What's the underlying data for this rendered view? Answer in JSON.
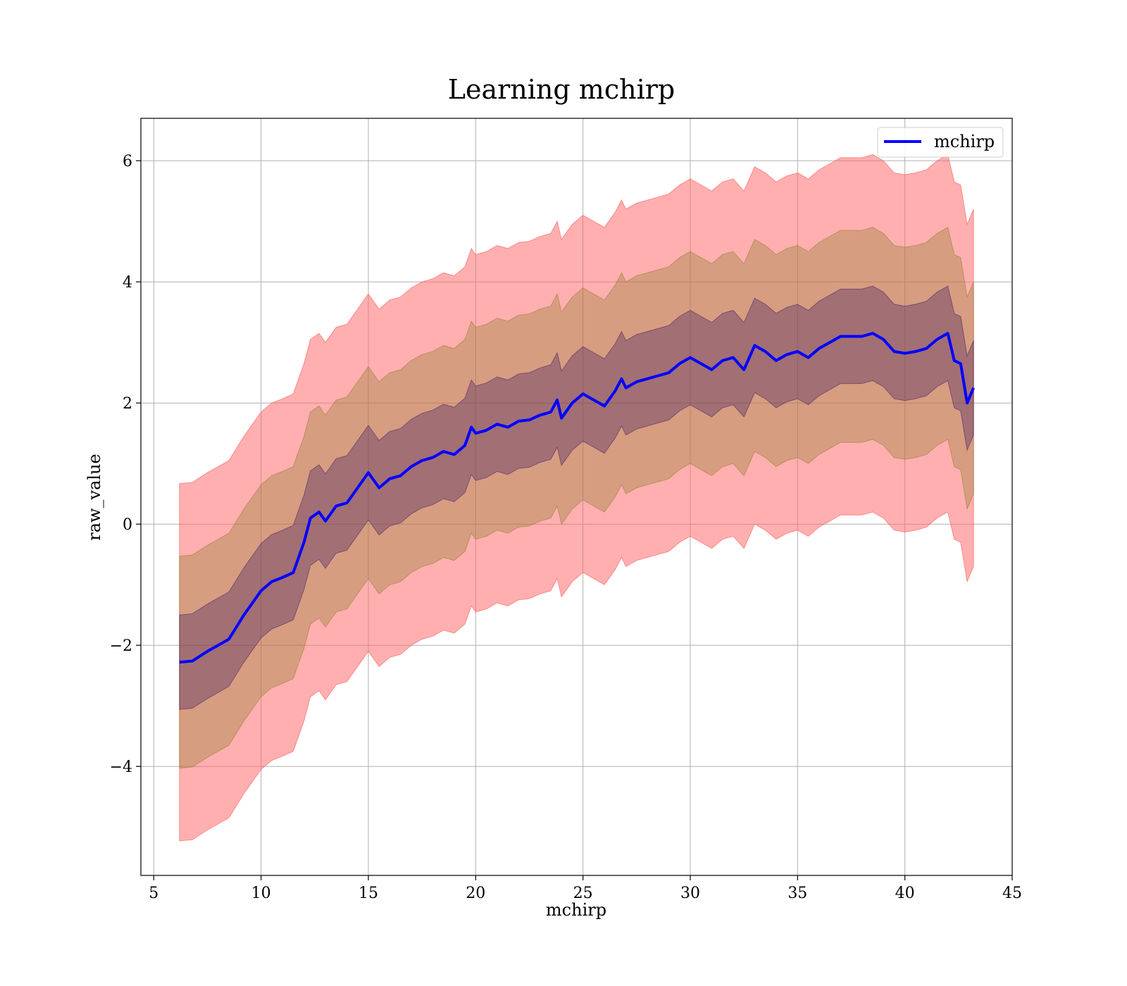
{
  "chart_data": {
    "type": "area",
    "title": "Learning mchirp",
    "xlabel": "mchirp",
    "ylabel": "raw_value",
    "xlim": [
      4.4,
      45
    ],
    "ylim": [
      -5.8,
      6.7
    ],
    "x_ticks": [
      5,
      10,
      15,
      20,
      25,
      30,
      35,
      40,
      45
    ],
    "y_ticks": [
      -4,
      -2,
      0,
      2,
      4,
      6
    ],
    "x_tick_labels": [
      "5",
      "10",
      "15",
      "20",
      "25",
      "30",
      "35",
      "40",
      "45"
    ],
    "y_tick_labels": [
      "−4",
      "−2",
      "0",
      "2",
      "4",
      "6"
    ],
    "grid": true,
    "legend_position": "top-right",
    "x": [
      6.2,
      6.8,
      7.5,
      8.5,
      9.2,
      9.6,
      10.0,
      10.5,
      11.0,
      11.5,
      12.0,
      12.3,
      12.7,
      13.0,
      13.5,
      14.0,
      14.5,
      15.0,
      15.5,
      16.0,
      16.5,
      17.0,
      17.5,
      18.0,
      18.5,
      19.0,
      19.5,
      19.8,
      20.0,
      20.5,
      21.0,
      21.5,
      22.0,
      22.5,
      23.0,
      23.5,
      23.8,
      24.0,
      24.5,
      25.0,
      25.5,
      26.0,
      26.5,
      26.8,
      27.0,
      27.5,
      28.0,
      28.5,
      29.0,
      29.5,
      30.0,
      30.5,
      31.0,
      31.5,
      32.0,
      32.5,
      33.0,
      33.5,
      34.0,
      34.5,
      35.0,
      35.5,
      36.0,
      36.5,
      37.0,
      37.5,
      38.0,
      38.5,
      39.0,
      39.5,
      40.0,
      40.5,
      41.0,
      41.5,
      42.0,
      42.3,
      42.6,
      42.9,
      43.2
    ],
    "series": [
      {
        "name": "mchirp",
        "color": "#0000ff",
        "values": [
          -2.28,
          -2.26,
          -2.1,
          -1.9,
          -1.5,
          -1.3,
          -1.1,
          -0.95,
          -0.88,
          -0.8,
          -0.3,
          0.1,
          0.2,
          0.05,
          0.3,
          0.35,
          0.6,
          0.85,
          0.6,
          0.75,
          0.8,
          0.95,
          1.05,
          1.1,
          1.2,
          1.15,
          1.3,
          1.6,
          1.5,
          1.55,
          1.65,
          1.6,
          1.7,
          1.72,
          1.8,
          1.85,
          2.05,
          1.75,
          2.0,
          2.15,
          2.05,
          1.95,
          2.2,
          2.4,
          2.25,
          2.35,
          2.4,
          2.45,
          2.5,
          2.65,
          2.75,
          2.65,
          2.55,
          2.7,
          2.75,
          2.55,
          2.95,
          2.85,
          2.7,
          2.8,
          2.85,
          2.75,
          2.9,
          3.0,
          3.1,
          3.1,
          3.1,
          3.15,
          3.05,
          2.85,
          2.82,
          2.85,
          2.9,
          3.05,
          3.15,
          2.7,
          2.65,
          2.0,
          2.25
        ]
      }
    ],
    "bands": [
      {
        "sigma": 3,
        "color": "#ff6666",
        "opacity": 0.52,
        "half_width": 2.95
      },
      {
        "sigma": 2,
        "color": "#8b7a2b",
        "opacity": 0.35,
        "half_width": 1.75
      },
      {
        "sigma": 1,
        "color": "#3f1a5f",
        "opacity": 0.35,
        "half_width": 0.78
      }
    ],
    "legend": [
      {
        "label": "mchirp",
        "color": "#0000ff"
      }
    ]
  }
}
